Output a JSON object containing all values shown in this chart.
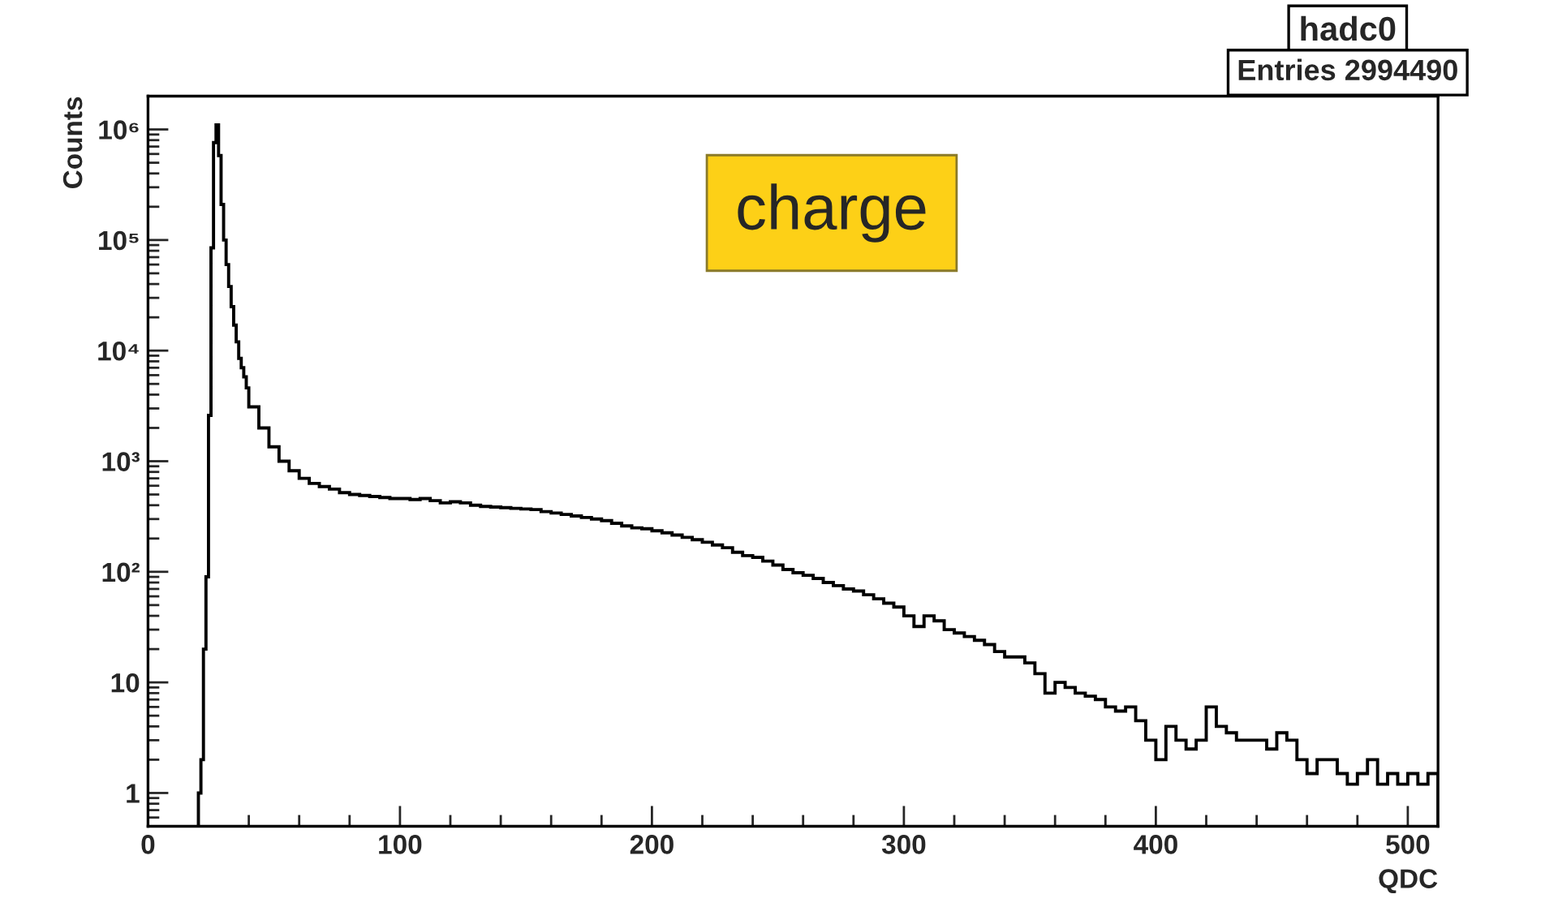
{
  "chart_data": {
    "type": "histogram",
    "title": "hadc0",
    "xlabel": "QDC",
    "ylabel": "Counts",
    "annotations": [
      "Entries 2994490",
      "charge"
    ],
    "bins": [
      20,
      21,
      22,
      23,
      24,
      25,
      26,
      27,
      28,
      29,
      30,
      31,
      32,
      33,
      34,
      35,
      36,
      37,
      38,
      39,
      40,
      44,
      48,
      52,
      56,
      60,
      64,
      68,
      72,
      76,
      80,
      84,
      88,
      92,
      96,
      100,
      104,
      108,
      112,
      116,
      120,
      124,
      128,
      132,
      136,
      140,
      144,
      148,
      152,
      156,
      160,
      164,
      168,
      172,
      176,
      180,
      184,
      188,
      192,
      196,
      200,
      204,
      208,
      212,
      216,
      220,
      224,
      228,
      232,
      236,
      240,
      244,
      248,
      252,
      256,
      260,
      264,
      268,
      272,
      276,
      280,
      284,
      288,
      292,
      296,
      300,
      304,
      308,
      312,
      316,
      320,
      324,
      328,
      332,
      336,
      340,
      344,
      348,
      352,
      356,
      360,
      364,
      368,
      372,
      376,
      380,
      384,
      388,
      392,
      396,
      400,
      404,
      408,
      412,
      416,
      420,
      424,
      428,
      432,
      436,
      440,
      444,
      448,
      452,
      456,
      460,
      464,
      468,
      472,
      476,
      480,
      484,
      488,
      492,
      496,
      500,
      504,
      508,
      512
    ],
    "values": [
      1,
      2,
      20,
      90,
      2600,
      85000,
      760000,
      1100000,
      580000,
      210000,
      100000,
      60000,
      38000,
      25000,
      17000,
      12000,
      8500,
      7000,
      5800,
      4600,
      3100,
      2000,
      1350,
      1000,
      820,
      700,
      630,
      590,
      560,
      520,
      500,
      490,
      480,
      470,
      460,
      460,
      450,
      460,
      440,
      420,
      430,
      420,
      400,
      390,
      385,
      380,
      375,
      370,
      365,
      350,
      340,
      330,
      320,
      310,
      300,
      290,
      275,
      260,
      250,
      245,
      235,
      225,
      215,
      205,
      195,
      185,
      175,
      165,
      150,
      140,
      135,
      125,
      115,
      105,
      98,
      93,
      87,
      80,
      75,
      70,
      67,
      62,
      57,
      52,
      48,
      40,
      32,
      40,
      36,
      30,
      28,
      26,
      24,
      22,
      19,
      17,
      17,
      15,
      12,
      8,
      10,
      9,
      8,
      7.5,
      7,
      6,
      5.5,
      6,
      4.5,
      3,
      2,
      4,
      3,
      2.5,
      3,
      6,
      4,
      3.5,
      3,
      3,
      3,
      2.5,
      3.5,
      3,
      2,
      1.5,
      2,
      2,
      1.5,
      1.2,
      1.5,
      2,
      1.2,
      1.5,
      1.2,
      1.5,
      1.2,
      1.5
    ],
    "color": "#000000",
    "xlim": [
      0,
      512
    ],
    "xticks": [
      0,
      100,
      200,
      300,
      400,
      500
    ],
    "ylim": [
      0.5,
      2000000
    ],
    "log": true,
    "yticks": [
      1,
      10,
      {
        "value": 100,
        "label": "10²"
      },
      {
        "value": 1000,
        "label": "10³"
      },
      {
        "value": 10000,
        "label": "10⁴"
      },
      {
        "value": 100000,
        "label": "10⁵"
      },
      {
        "value": 1000000,
        "label": "10⁶"
      }
    ],
    "grid": false,
    "legend": false
  }
}
